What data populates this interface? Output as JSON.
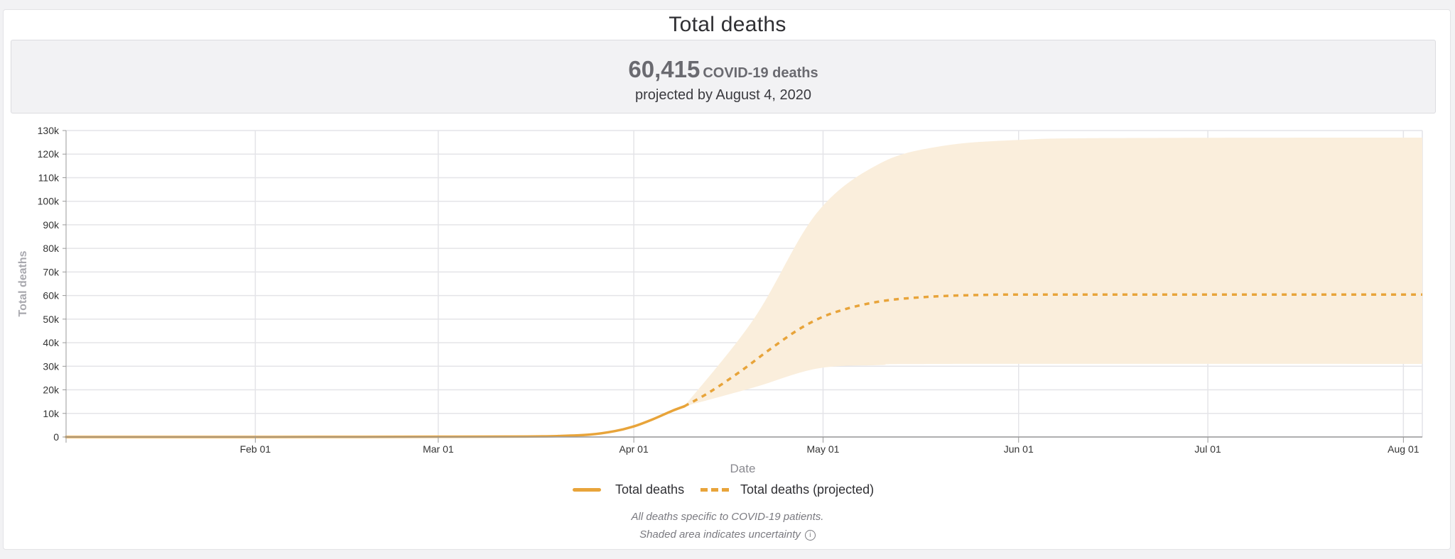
{
  "title": "Total deaths",
  "summary": {
    "value": "60,415",
    "unit_label": "COVID-19 deaths",
    "subtitle": "projected by August 4, 2020"
  },
  "legend": {
    "actual": "Total deaths",
    "projected": "Total deaths (projected)"
  },
  "footnote": {
    "line1": "All deaths specific to COVID-19 patients.",
    "line2": "Shaded area indicates uncertainty",
    "info_icon": "i"
  },
  "colors": {
    "accent": "#e8a43a",
    "band": "#faeedc",
    "grid": "#e4e4e8"
  },
  "chart_data": {
    "type": "line",
    "xlabel": "Date",
    "ylabel": "Total deaths",
    "xlim": [
      "2020-01-02",
      "2020-08-04"
    ],
    "ylim": [
      0,
      130000
    ],
    "x_ticks": [
      {
        "date": "2020-02-01",
        "label": "Feb 01"
      },
      {
        "date": "2020-03-01",
        "label": "Mar 01"
      },
      {
        "date": "2020-04-01",
        "label": "Apr 01"
      },
      {
        "date": "2020-05-01",
        "label": "May 01"
      },
      {
        "date": "2020-06-01",
        "label": "Jun 01"
      },
      {
        "date": "2020-07-01",
        "label": "Jul 01"
      },
      {
        "date": "2020-08-01",
        "label": "Aug 01"
      }
    ],
    "y_ticks": [
      {
        "value": 0,
        "label": "0"
      },
      {
        "value": 10000,
        "label": "10k"
      },
      {
        "value": 20000,
        "label": "20k"
      },
      {
        "value": 30000,
        "label": "30k"
      },
      {
        "value": 40000,
        "label": "40k"
      },
      {
        "value": 50000,
        "label": "50k"
      },
      {
        "value": 60000,
        "label": "60k"
      },
      {
        "value": 70000,
        "label": "70k"
      },
      {
        "value": 80000,
        "label": "80k"
      },
      {
        "value": 90000,
        "label": "90k"
      },
      {
        "value": 100000,
        "label": "100k"
      },
      {
        "value": 110000,
        "label": "110k"
      },
      {
        "value": 120000,
        "label": "120k"
      },
      {
        "value": 130000,
        "label": "130k"
      }
    ],
    "grid": true,
    "legend_position": "bottom",
    "series": [
      {
        "name": "Total deaths",
        "style": "solid",
        "points": [
          [
            "2020-01-02",
            0
          ],
          [
            "2020-02-01",
            0
          ],
          [
            "2020-03-01",
            100
          ],
          [
            "2020-03-15",
            200
          ],
          [
            "2020-03-20",
            400
          ],
          [
            "2020-03-25",
            1000
          ],
          [
            "2020-03-29",
            2500
          ],
          [
            "2020-04-01",
            4500
          ],
          [
            "2020-04-04",
            7500
          ],
          [
            "2020-04-07",
            11000
          ],
          [
            "2020-04-09",
            13000
          ]
        ]
      },
      {
        "name": "Total deaths (projected)",
        "style": "dashed",
        "points": [
          [
            "2020-04-09",
            13000
          ],
          [
            "2020-04-13",
            19000
          ],
          [
            "2020-04-18",
            28000
          ],
          [
            "2020-04-23",
            38000
          ],
          [
            "2020-04-28",
            47000
          ],
          [
            "2020-05-03",
            53000
          ],
          [
            "2020-05-10",
            57500
          ],
          [
            "2020-05-18",
            59500
          ],
          [
            "2020-05-27",
            60300
          ],
          [
            "2020-06-05",
            60400
          ],
          [
            "2020-08-04",
            60415
          ]
        ]
      }
    ],
    "uncertainty_band": {
      "upper": [
        [
          "2020-04-09",
          13000
        ],
        [
          "2020-04-20",
          50000
        ],
        [
          "2020-04-30",
          95000
        ],
        [
          "2020-05-10",
          116000
        ],
        [
          "2020-05-20",
          123500
        ],
        [
          "2020-06-01",
          126000
        ],
        [
          "2020-06-15",
          126800
        ],
        [
          "2020-08-04",
          127000
        ]
      ],
      "lower": [
        [
          "2020-04-09",
          13000
        ],
        [
          "2020-04-20",
          21000
        ],
        [
          "2020-04-30",
          29000
        ],
        [
          "2020-05-10",
          30500
        ],
        [
          "2020-05-20",
          31000
        ],
        [
          "2020-08-04",
          31000
        ]
      ]
    }
  }
}
